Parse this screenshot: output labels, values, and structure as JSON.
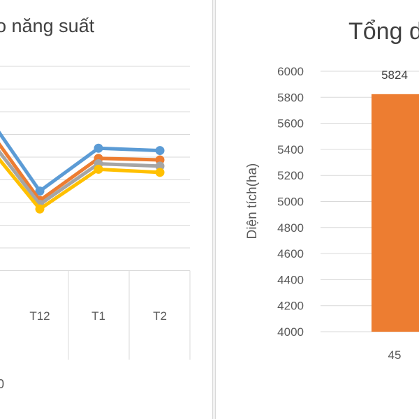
{
  "left_panel": {
    "title": "o năng suất",
    "footnote": "0"
  },
  "right_panel": {
    "title": "Tổng d"
  },
  "colors": {
    "series1": "#5b9bd5",
    "series2": "#ed7d31",
    "series3": "#a5a5a5",
    "series4": "#ffc000",
    "bar": "#ed7d31",
    "grid": "#d9d9d9",
    "text": "#595959"
  },
  "chart_data": [
    {
      "type": "line",
      "title": "o năng suất",
      "categories": [
        "",
        "T12",
        "T1",
        "T2"
      ],
      "series": [
        {
          "values": [
            62,
            54,
            59.5,
            59.2
          ]
        },
        {
          "values": [
            60.5,
            52.8,
            58.2,
            58
          ]
        },
        {
          "values": [
            59.5,
            52.3,
            57.5,
            57.2
          ]
        },
        {
          "values": [
            58.5,
            51.7,
            56.8,
            56.4
          ]
        }
      ],
      "grid": true
    },
    {
      "type": "bar",
      "title": "Tổng d",
      "ylabel": "Diện tích(ha)",
      "categories": [
        "45"
      ],
      "values": [
        5824
      ],
      "data_labels": [
        "5824"
      ],
      "ylim": [
        4000,
        6000
      ],
      "yticks": [
        "4000",
        "4200",
        "4400",
        "4600",
        "4800",
        "5000",
        "5200",
        "5400",
        "5600",
        "5800",
        "6000"
      ],
      "grid": true
    }
  ]
}
